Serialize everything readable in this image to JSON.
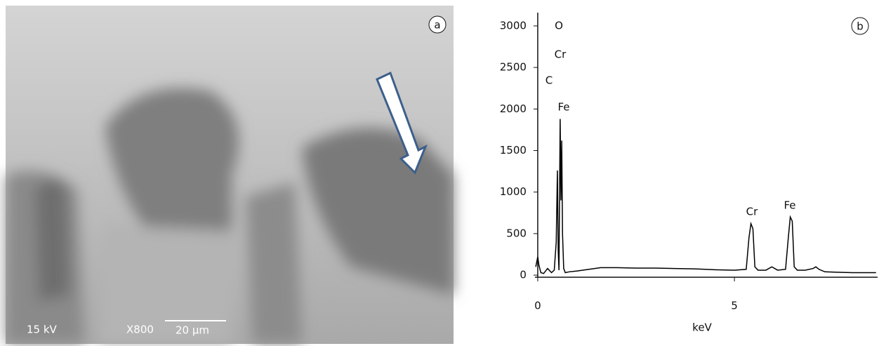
{
  "image_panel": {
    "label": "a",
    "voltage": "15 kV",
    "magnification": "X800",
    "scale_bar": "20 µm"
  },
  "chart_data": {
    "type": "line",
    "panel_label": "b",
    "xlabel": "keV",
    "annotations": [
      "O",
      "Cr",
      "C",
      "Fe",
      "Cr",
      "Fe"
    ],
    "xlim": [
      -0.07,
      8.64
    ],
    "xticks": [
      0,
      5
    ],
    "ylim": [
      -25,
      3160
    ],
    "yticks": [
      0,
      500,
      1000,
      1500,
      2000,
      2500,
      3000
    ],
    "series": [
      {
        "color": "#000000",
        "x": [
          -0.05,
          0,
          0.03,
          0.08,
          0.15,
          0.25,
          0.35,
          0.42,
          0.47,
          0.5,
          0.52,
          0.54,
          0.57,
          0.59,
          0.61,
          0.63,
          0.66,
          0.7,
          0.8,
          1.0,
          1.3,
          1.6,
          2.0,
          2.5,
          3.0,
          3.5,
          4.0,
          4.5,
          5.0,
          5.3,
          5.37,
          5.42,
          5.47,
          5.52,
          5.6,
          5.8,
          5.95,
          6.1,
          6.3,
          6.37,
          6.42,
          6.47,
          6.52,
          6.6,
          6.8,
          7.0,
          7.07,
          7.15,
          7.3,
          7.6,
          8.0,
          8.6
        ],
        "values": [
          100,
          220,
          120,
          30,
          20,
          80,
          30,
          60,
          400,
          1260,
          300,
          60,
          1880,
          900,
          1620,
          500,
          80,
          30,
          40,
          50,
          70,
          90,
          90,
          85,
          85,
          80,
          75,
          65,
          60,
          70,
          450,
          620,
          560,
          100,
          60,
          60,
          100,
          60,
          70,
          450,
          700,
          650,
          100,
          60,
          60,
          80,
          100,
          70,
          40,
          35,
          30,
          30
        ]
      }
    ]
  }
}
